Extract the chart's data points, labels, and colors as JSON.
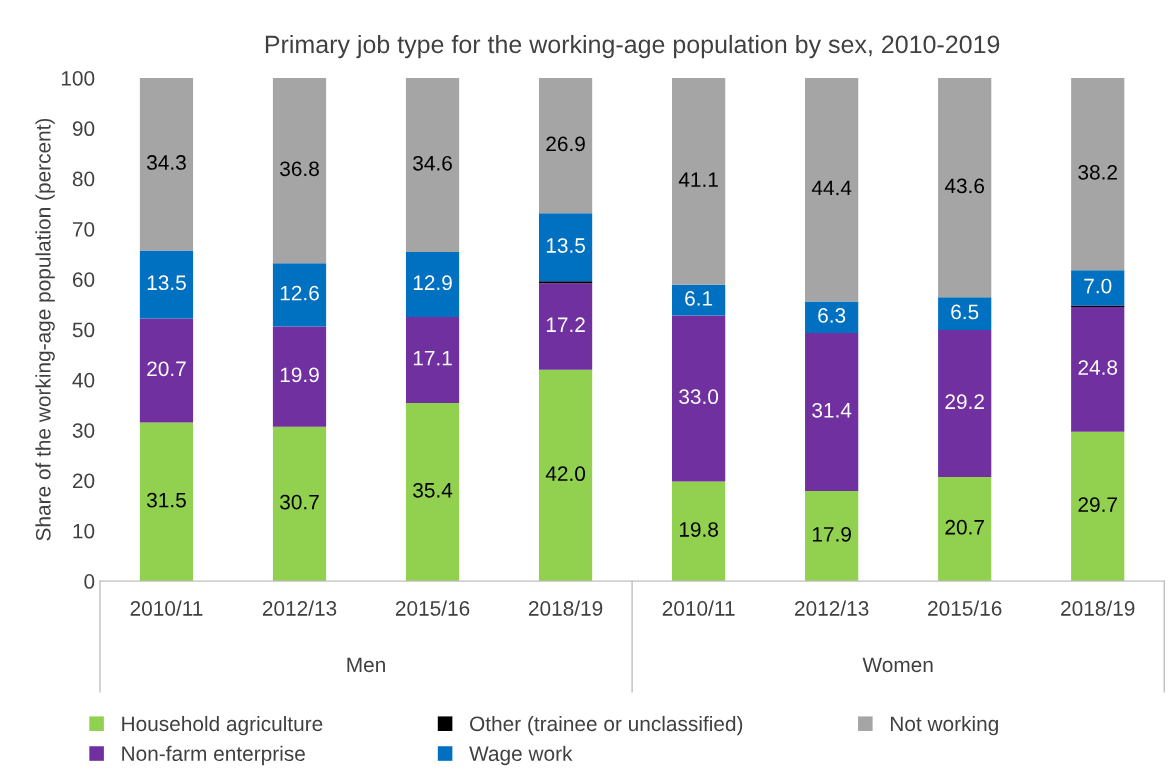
{
  "chart_data": {
    "type": "bar",
    "stacked": true,
    "title": "Primary job type for the working-age population by sex, 2010-2019",
    "ylabel": "Share of the working-age population (percent)",
    "categories": [
      "2010/11",
      "2012/13",
      "2015/16",
      "2018/19",
      "2010/11",
      "2012/13",
      "2015/16",
      "2018/19"
    ],
    "annotations": [
      "Men",
      "Women"
    ],
    "series": [
      {
        "name": "Household agriculture",
        "color": "#92d050",
        "values": [
          31.5,
          30.7,
          35.4,
          42.0,
          19.8,
          17.9,
          20.7,
          29.7
        ],
        "value_labels": [
          "31.5",
          "30.7",
          "35.4",
          "42.0",
          "19.8",
          "17.9",
          "20.7",
          "29.7"
        ]
      },
      {
        "name": "Non-farm enterprise",
        "color": "#7030a0",
        "values": [
          20.7,
          19.9,
          17.1,
          17.2,
          33.0,
          31.4,
          29.2,
          24.8
        ],
        "value_labels": [
          "20.7",
          "19.9",
          "17.1",
          "17.2",
          "33.0",
          "31.4",
          "29.2",
          "24.8"
        ]
      },
      {
        "name": "Other (trainee or unclassified)",
        "color": "#000000",
        "values": [
          0,
          0,
          0,
          0.4,
          0,
          0,
          0,
          0.3
        ],
        "value_labels": [
          null,
          null,
          null,
          null,
          null,
          null,
          null,
          null
        ]
      },
      {
        "name": "Wage work",
        "color": "#0070c0",
        "values": [
          13.5,
          12.6,
          12.9,
          13.5,
          6.1,
          6.3,
          6.5,
          7.0
        ],
        "value_labels": [
          "13.5",
          "12.6",
          "12.9",
          "13.5",
          "6.1",
          "6.3",
          "6.5",
          "7.0"
        ]
      },
      {
        "name": "Not working",
        "color": "#a5a5a5",
        "values": [
          34.3,
          36.8,
          34.6,
          26.9,
          41.1,
          44.4,
          43.6,
          38.2
        ],
        "value_labels": [
          "34.3",
          "36.8",
          "34.6",
          "26.9",
          "41.1",
          "44.4",
          "43.6",
          "38.2"
        ]
      }
    ],
    "ylim": [
      0,
      100
    ],
    "yticks": [
      0,
      10,
      20,
      30,
      40,
      50,
      60,
      70,
      80,
      90,
      100
    ],
    "grid": false,
    "legend": "bottom"
  }
}
